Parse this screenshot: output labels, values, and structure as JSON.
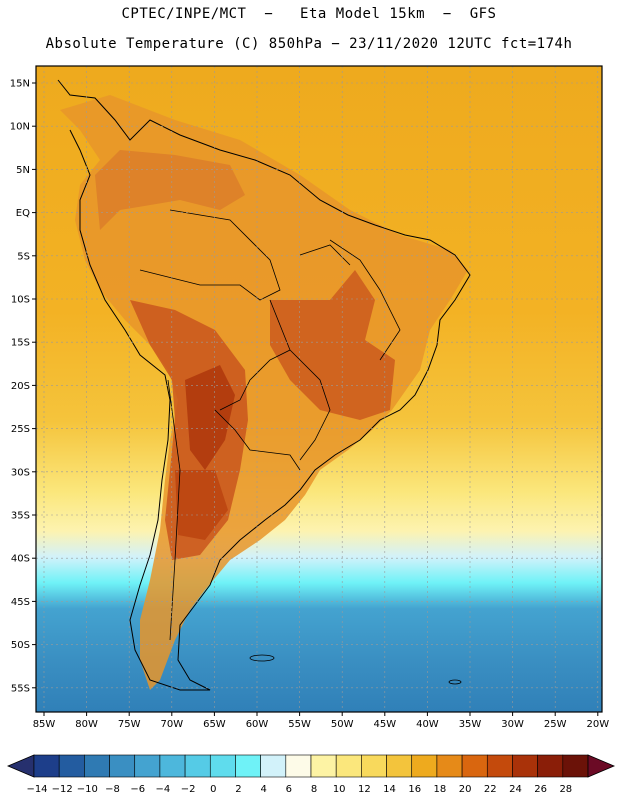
{
  "header": {
    "line1": "CPTEC/INPE/MCT  −   Eta Model 15km  −  GFS",
    "line2": "Absolute Temperature (C) 850hPa − 23/11/2020 12UTC fct=174h"
  },
  "map": {
    "lat_labels": [
      "15N",
      "10N",
      "5N",
      "EQ",
      "5S",
      "10S",
      "15S",
      "20S",
      "25S",
      "30S",
      "35S",
      "40S",
      "45S",
      "50S",
      "55S"
    ],
    "lon_labels": [
      "85W",
      "80W",
      "75W",
      "70W",
      "65W",
      "60W",
      "55W",
      "50W",
      "45W",
      "40W",
      "35W",
      "30W",
      "25W",
      "20W"
    ]
  },
  "colorbar": {
    "labels": [
      "−14",
      "−12",
      "−10",
      "−8",
      "−6",
      "−4",
      "−2",
      "0",
      "2",
      "4",
      "6",
      "8",
      "10",
      "12",
      "14",
      "16",
      "18",
      "20",
      "22",
      "24",
      "26",
      "28"
    ],
    "colors": [
      "#1d3e8a",
      "#235ca0",
      "#2f7ab3",
      "#3a8fc2",
      "#44a3d0",
      "#4db7dc",
      "#55cbe6",
      "#5fdced",
      "#6ff2f7",
      "#d2f2fa",
      "#fdfbe8",
      "#fdf3a4",
      "#fbe77c",
      "#f8d95c",
      "#f3c43c",
      "#eeaa1e",
      "#e68a18",
      "#d9660f",
      "#c44a0c",
      "#a93209",
      "#8a1e08",
      "#6b1208"
    ]
  },
  "colors": {
    "ocean_warm": "#f1b02a",
    "land_hot": "#c9561d",
    "cold": "#3a8fc2"
  }
}
